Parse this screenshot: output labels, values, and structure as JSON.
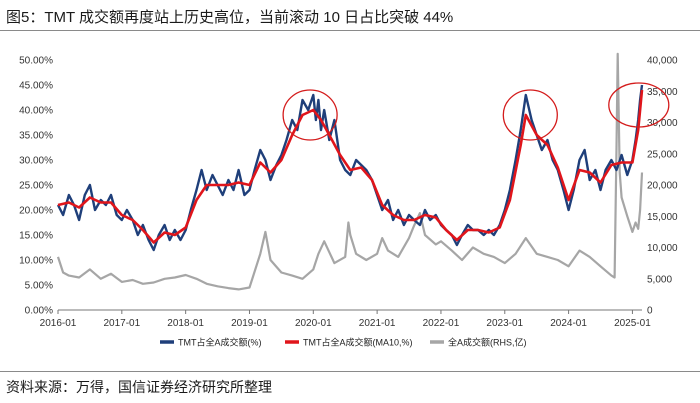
{
  "title": "图5：TMT 成交额再度站上历史高位，当前滚动 10 日占比突破 44%",
  "source": "资料来源：万得，国信证券经济研究所整理",
  "colors": {
    "share": "#1f3f7a",
    "ma10": "#e0151b",
    "turnover": "#a6a6a6",
    "highlight": "#d41c1c"
  },
  "chart_data": {
    "type": "line",
    "title": "TMT 成交额再度站上历史高位，当前滚动 10 日占比突破 44%",
    "x_ticks": [
      "2016-01",
      "2017-01",
      "2018-01",
      "2019-01",
      "2020-01",
      "2021-01",
      "2022-01",
      "2023-01",
      "2024-01",
      "2025-01"
    ],
    "x_range": [
      2016.0,
      2025.15
    ],
    "y_left": {
      "ticks": [
        "0.00%",
        "5.00%",
        "10.00%",
        "15.00%",
        "20.00%",
        "25.00%",
        "30.00%",
        "35.00%",
        "40.00%",
        "45.00%",
        "50.00%"
      ],
      "range": [
        0,
        50
      ],
      "unit": "%"
    },
    "y_right": {
      "ticks": [
        "0",
        "5,000",
        "10,000",
        "15,000",
        "20,000",
        "25,000",
        "30,000",
        "35,000",
        "40,000"
      ],
      "range": [
        0,
        40000
      ],
      "label": "RHS, 亿"
    },
    "series": [
      {
        "name": "TMT占全A成交额(%)",
        "axis": "left",
        "color": "#1f3f7a",
        "points": [
          [
            2016.0,
            21
          ],
          [
            2016.08,
            19
          ],
          [
            2016.17,
            23
          ],
          [
            2016.25,
            21
          ],
          [
            2016.33,
            18
          ],
          [
            2016.42,
            23
          ],
          [
            2016.5,
            25
          ],
          [
            2016.58,
            20
          ],
          [
            2016.67,
            22
          ],
          [
            2016.75,
            21
          ],
          [
            2016.83,
            23
          ],
          [
            2016.92,
            19
          ],
          [
            2017.0,
            18
          ],
          [
            2017.08,
            20
          ],
          [
            2017.17,
            18
          ],
          [
            2017.25,
            15
          ],
          [
            2017.33,
            17
          ],
          [
            2017.42,
            14
          ],
          [
            2017.5,
            12
          ],
          [
            2017.58,
            15
          ],
          [
            2017.67,
            17
          ],
          [
            2017.75,
            14
          ],
          [
            2017.83,
            16
          ],
          [
            2017.92,
            14
          ],
          [
            2018.0,
            16
          ],
          [
            2018.08,
            20
          ],
          [
            2018.17,
            24
          ],
          [
            2018.25,
            28
          ],
          [
            2018.33,
            24
          ],
          [
            2018.42,
            27
          ],
          [
            2018.5,
            25
          ],
          [
            2018.58,
            23
          ],
          [
            2018.67,
            26
          ],
          [
            2018.75,
            24
          ],
          [
            2018.83,
            28
          ],
          [
            2018.92,
            23
          ],
          [
            2019.0,
            24
          ],
          [
            2019.08,
            28
          ],
          [
            2019.17,
            32
          ],
          [
            2019.25,
            30
          ],
          [
            2019.33,
            26
          ],
          [
            2019.42,
            29
          ],
          [
            2019.5,
            31
          ],
          [
            2019.58,
            34
          ],
          [
            2019.67,
            38
          ],
          [
            2019.75,
            36
          ],
          [
            2019.83,
            42
          ],
          [
            2019.92,
            40
          ],
          [
            2020.0,
            43
          ],
          [
            2020.04,
            38
          ],
          [
            2020.08,
            42
          ],
          [
            2020.12,
            36
          ],
          [
            2020.17,
            40
          ],
          [
            2020.25,
            34
          ],
          [
            2020.33,
            38
          ],
          [
            2020.42,
            30
          ],
          [
            2020.5,
            28
          ],
          [
            2020.58,
            27
          ],
          [
            2020.67,
            30
          ],
          [
            2020.75,
            29
          ],
          [
            2020.83,
            28
          ],
          [
            2020.92,
            26
          ],
          [
            2021.0,
            23
          ],
          [
            2021.08,
            20
          ],
          [
            2021.17,
            22
          ],
          [
            2021.25,
            18
          ],
          [
            2021.33,
            20
          ],
          [
            2021.42,
            17
          ],
          [
            2021.5,
            19
          ],
          [
            2021.58,
            18
          ],
          [
            2021.67,
            17
          ],
          [
            2021.75,
            20
          ],
          [
            2021.83,
            18
          ],
          [
            2021.92,
            19
          ],
          [
            2022.0,
            17
          ],
          [
            2022.08,
            16
          ],
          [
            2022.17,
            15
          ],
          [
            2022.25,
            13
          ],
          [
            2022.33,
            15
          ],
          [
            2022.42,
            17
          ],
          [
            2022.5,
            16
          ],
          [
            2022.58,
            16
          ],
          [
            2022.67,
            15
          ],
          [
            2022.75,
            16
          ],
          [
            2022.83,
            15
          ],
          [
            2022.92,
            17
          ],
          [
            2023.0,
            20
          ],
          [
            2023.08,
            24
          ],
          [
            2023.17,
            30
          ],
          [
            2023.25,
            36
          ],
          [
            2023.33,
            43
          ],
          [
            2023.42,
            38
          ],
          [
            2023.5,
            35
          ],
          [
            2023.58,
            32
          ],
          [
            2023.67,
            34
          ],
          [
            2023.75,
            30
          ],
          [
            2023.83,
            28
          ],
          [
            2023.92,
            24
          ],
          [
            2024.0,
            20
          ],
          [
            2024.08,
            24
          ],
          [
            2024.17,
            30
          ],
          [
            2024.25,
            32
          ],
          [
            2024.33,
            26
          ],
          [
            2024.42,
            28
          ],
          [
            2024.5,
            24
          ],
          [
            2024.58,
            28
          ],
          [
            2024.67,
            30
          ],
          [
            2024.75,
            28
          ],
          [
            2024.83,
            31
          ],
          [
            2024.92,
            27
          ],
          [
            2025.0,
            30
          ],
          [
            2025.05,
            34
          ],
          [
            2025.09,
            38
          ],
          [
            2025.12,
            42
          ],
          [
            2025.15,
            45
          ]
        ]
      },
      {
        "name": "TMT占全A成交额(MA10,%)",
        "axis": "left",
        "color": "#e0151b",
        "points": [
          [
            2016.0,
            21
          ],
          [
            2016.17,
            21.5
          ],
          [
            2016.33,
            20.5
          ],
          [
            2016.5,
            22.5
          ],
          [
            2016.67,
            21.5
          ],
          [
            2016.83,
            21.5
          ],
          [
            2017.0,
            19
          ],
          [
            2017.17,
            18
          ],
          [
            2017.33,
            16
          ],
          [
            2017.5,
            13.5
          ],
          [
            2017.67,
            15.5
          ],
          [
            2017.83,
            15
          ],
          [
            2018.0,
            16.5
          ],
          [
            2018.17,
            22
          ],
          [
            2018.33,
            25
          ],
          [
            2018.5,
            25
          ],
          [
            2018.67,
            25
          ],
          [
            2018.83,
            25.5
          ],
          [
            2019.0,
            25
          ],
          [
            2019.17,
            29.5
          ],
          [
            2019.33,
            27.5
          ],
          [
            2019.5,
            30
          ],
          [
            2019.67,
            35
          ],
          [
            2019.83,
            39
          ],
          [
            2020.0,
            40
          ],
          [
            2020.12,
            38
          ],
          [
            2020.25,
            35
          ],
          [
            2020.42,
            31
          ],
          [
            2020.58,
            28
          ],
          [
            2020.75,
            28.5
          ],
          [
            2020.92,
            26
          ],
          [
            2021.08,
            21
          ],
          [
            2021.25,
            19
          ],
          [
            2021.42,
            18
          ],
          [
            2021.58,
            18
          ],
          [
            2021.75,
            19
          ],
          [
            2021.92,
            18.5
          ],
          [
            2022.08,
            16
          ],
          [
            2022.25,
            14
          ],
          [
            2022.42,
            16
          ],
          [
            2022.58,
            16
          ],
          [
            2022.75,
            15.5
          ],
          [
            2022.92,
            16.5
          ],
          [
            2023.08,
            22
          ],
          [
            2023.25,
            33
          ],
          [
            2023.33,
            39
          ],
          [
            2023.5,
            35
          ],
          [
            2023.67,
            33
          ],
          [
            2023.83,
            28.5
          ],
          [
            2024.0,
            22
          ],
          [
            2024.17,
            28
          ],
          [
            2024.33,
            27.5
          ],
          [
            2024.5,
            25.5
          ],
          [
            2024.67,
            29
          ],
          [
            2024.83,
            29.5
          ],
          [
            2025.0,
            29.5
          ],
          [
            2025.09,
            36
          ],
          [
            2025.15,
            44
          ]
        ]
      },
      {
        "name": "全A成交额(RHS,亿)",
        "axis": "right",
        "color": "#a6a6a6",
        "points": [
          [
            2016.0,
            8500
          ],
          [
            2016.08,
            6000
          ],
          [
            2016.17,
            5500
          ],
          [
            2016.33,
            5200
          ],
          [
            2016.5,
            6500
          ],
          [
            2016.67,
            5000
          ],
          [
            2016.83,
            5800
          ],
          [
            2017.0,
            4500
          ],
          [
            2017.17,
            4800
          ],
          [
            2017.33,
            4200
          ],
          [
            2017.5,
            4400
          ],
          [
            2017.67,
            5000
          ],
          [
            2017.83,
            5200
          ],
          [
            2018.0,
            5600
          ],
          [
            2018.17,
            5000
          ],
          [
            2018.33,
            4200
          ],
          [
            2018.5,
            3800
          ],
          [
            2018.67,
            3500
          ],
          [
            2018.83,
            3300
          ],
          [
            2019.0,
            3600
          ],
          [
            2019.17,
            9000
          ],
          [
            2019.25,
            12500
          ],
          [
            2019.33,
            8000
          ],
          [
            2019.5,
            6000
          ],
          [
            2019.67,
            5500
          ],
          [
            2019.83,
            5000
          ],
          [
            2020.0,
            6500
          ],
          [
            2020.08,
            9000
          ],
          [
            2020.17,
            11000
          ],
          [
            2020.33,
            7500
          ],
          [
            2020.5,
            8500
          ],
          [
            2020.55,
            14000
          ],
          [
            2020.58,
            12000
          ],
          [
            2020.67,
            9000
          ],
          [
            2020.83,
            8000
          ],
          [
            2021.0,
            9000
          ],
          [
            2021.08,
            11500
          ],
          [
            2021.17,
            9500
          ],
          [
            2021.33,
            8500
          ],
          [
            2021.5,
            11500
          ],
          [
            2021.58,
            13500
          ],
          [
            2021.67,
            15500
          ],
          [
            2021.75,
            12000
          ],
          [
            2021.92,
            10500
          ],
          [
            2022.0,
            11000
          ],
          [
            2022.17,
            9500
          ],
          [
            2022.33,
            8000
          ],
          [
            2022.5,
            10000
          ],
          [
            2022.67,
            9000
          ],
          [
            2022.83,
            8500
          ],
          [
            2023.0,
            7500
          ],
          [
            2023.17,
            9000
          ],
          [
            2023.33,
            11500
          ],
          [
            2023.5,
            9000
          ],
          [
            2023.67,
            8500
          ],
          [
            2023.83,
            8000
          ],
          [
            2024.0,
            7000
          ],
          [
            2024.17,
            9500
          ],
          [
            2024.33,
            8500
          ],
          [
            2024.5,
            7000
          ],
          [
            2024.67,
            5500
          ],
          [
            2024.72,
            5200
          ],
          [
            2024.75,
            26000
          ],
          [
            2024.77,
            41000
          ],
          [
            2024.8,
            22000
          ],
          [
            2024.83,
            18000
          ],
          [
            2024.92,
            15000
          ],
          [
            2025.0,
            12500
          ],
          [
            2025.05,
            14000
          ],
          [
            2025.09,
            13000
          ],
          [
            2025.12,
            16000
          ],
          [
            2025.15,
            22000
          ]
        ]
      }
    ],
    "legend": [
      "TMT占全A成交额(%)",
      "TMT占全A成交额(MA10,%)",
      "全A成交额(RHS,亿)"
    ],
    "legend_position": "bottom",
    "annotations": [
      {
        "type": "circle",
        "at": [
          2019.95,
          39
        ],
        "note": "2019-2020 peak"
      },
      {
        "type": "circle",
        "at": [
          2023.4,
          39
        ],
        "note": "2023 peak"
      },
      {
        "type": "circle",
        "at": [
          2025.1,
          41
        ],
        "note": "2025 peak"
      }
    ]
  }
}
